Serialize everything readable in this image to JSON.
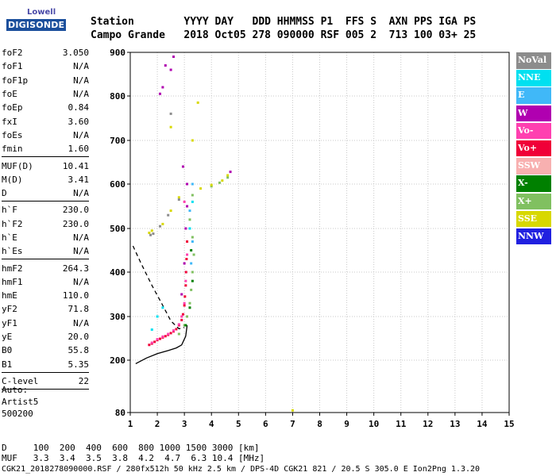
{
  "logo": {
    "brand": "Lowell",
    "product": "DIGISONDE"
  },
  "header": {
    "labels": "Station        YYYY DAY   DDD HHMMSS P1  FFS S  AXN PPS IGA PS",
    "values": "Campo Grande   2018 Oct05 278 090000 RSF 005 2  713 100 03+ 25"
  },
  "params": {
    "group1": [
      {
        "name": "foF2",
        "value": "3.050"
      },
      {
        "name": "foF1",
        "value": "N/A"
      },
      {
        "name": "foF1p",
        "value": "N/A"
      },
      {
        "name": "foE",
        "value": "N/A"
      },
      {
        "name": "foEp",
        "value": "0.84"
      },
      {
        "name": "fxI",
        "value": "3.60"
      },
      {
        "name": "foEs",
        "value": "N/A"
      },
      {
        "name": "fmin",
        "value": "1.60"
      }
    ],
    "group2": [
      {
        "name": "MUF(D)",
        "value": "10.41"
      },
      {
        "name": "M(D)",
        "value": "3.41"
      },
      {
        "name": "D",
        "value": "N/A"
      }
    ],
    "group3": [
      {
        "name": "h`F",
        "value": "230.0"
      },
      {
        "name": "h`F2",
        "value": "230.0"
      },
      {
        "name": "h`E",
        "value": "N/A"
      },
      {
        "name": "h`Es",
        "value": "N/A"
      }
    ],
    "group4": [
      {
        "name": "hmF2",
        "value": "264.3"
      },
      {
        "name": "hmF1",
        "value": "N/A"
      },
      {
        "name": "hmE",
        "value": "110.0"
      },
      {
        "name": "yF2",
        "value": "71.8"
      },
      {
        "name": "yF1",
        "value": "N/A"
      },
      {
        "name": "yE",
        "value": "20.0"
      },
      {
        "name": "B0",
        "value": "55.8"
      },
      {
        "name": "B1",
        "value": "5.35"
      }
    ],
    "group5": [
      {
        "name": "C-level",
        "value": "22"
      }
    ]
  },
  "auto": {
    "line1": "Auto:",
    "line2": "Artist5",
    "line3": "500200"
  },
  "bottom": {
    "d_row": "D     100  200  400  600  800 1000 1500 3000 [km]",
    "muf_row": "MUF   3.3  3.4  3.5  3.8  4.2  4.7  6.3 10.4 [MHz]",
    "footer": "CGK21_2018278090000.RSF / 280fx512h 50 kHz 2.5 km / DPS-4D CGK21 821 / 20.5 S 305.0 E Ion2Png 1.3.20"
  },
  "legend": [
    {
      "label": "NoVal",
      "color": "#8c8c8c"
    },
    {
      "label": "NNE",
      "color": "#00e0f0"
    },
    {
      "label": "E",
      "color": "#40b8f8"
    },
    {
      "label": "W",
      "color": "#b000b0"
    },
    {
      "label": "Vo-",
      "color": "#ff40b0"
    },
    {
      "label": "Vo+",
      "color": "#f00038"
    },
    {
      "label": "SSW",
      "color": "#f8b0b0"
    },
    {
      "label": "X-",
      "color": "#008000"
    },
    {
      "label": "X+",
      "color": "#80c060"
    },
    {
      "label": "SSE",
      "color": "#d8d800"
    },
    {
      "label": "NNW",
      "color": "#2020e0"
    }
  ],
  "chart_data": {
    "type": "scatter",
    "xlim": [
      1,
      15
    ],
    "ylim": [
      80,
      900
    ],
    "x_ticks": [
      1,
      2,
      3,
      4,
      5,
      6,
      7,
      8,
      9,
      10,
      11,
      12,
      13,
      14,
      15
    ],
    "y_ticks": [
      80,
      200,
      300,
      400,
      500,
      600,
      700,
      800,
      900
    ],
    "grid": true,
    "legend_position": "right",
    "series": [
      {
        "name": "Vo+",
        "color": "#f00038",
        "points": [
          [
            1.7,
            235
          ],
          [
            1.8,
            238
          ],
          [
            1.9,
            242
          ],
          [
            2.0,
            246
          ],
          [
            2.1,
            249
          ],
          [
            2.2,
            252
          ],
          [
            2.3,
            255
          ],
          [
            2.4,
            258
          ],
          [
            2.5,
            262
          ],
          [
            2.6,
            266
          ],
          [
            2.7,
            271
          ],
          [
            2.8,
            280
          ],
          [
            2.9,
            292
          ],
          [
            2.95,
            305
          ],
          [
            3.0,
            325
          ],
          [
            3.02,
            345
          ],
          [
            3.05,
            370
          ],
          [
            3.06,
            400
          ],
          [
            3.08,
            430
          ],
          [
            3.1,
            470
          ]
        ]
      },
      {
        "name": "Vo-",
        "color": "#ff40b0",
        "points": [
          [
            1.8,
            240
          ],
          [
            2.0,
            248
          ],
          [
            2.2,
            254
          ],
          [
            2.4,
            260
          ],
          [
            2.6,
            268
          ],
          [
            2.8,
            282
          ],
          [
            2.9,
            300
          ],
          [
            3.0,
            330
          ],
          [
            3.05,
            380
          ],
          [
            3.1,
            440
          ],
          [
            3.0,
            560
          ]
        ]
      },
      {
        "name": "W",
        "color": "#b000b0",
        "points": [
          [
            2.9,
            350
          ],
          [
            3.0,
            420
          ],
          [
            3.05,
            500
          ],
          [
            3.1,
            550
          ],
          [
            2.95,
            640
          ],
          [
            3.1,
            600
          ],
          [
            4.7,
            628
          ],
          [
            2.2,
            820
          ],
          [
            2.3,
            870
          ],
          [
            2.6,
            890
          ],
          [
            2.5,
            860
          ],
          [
            2.1,
            805
          ]
        ]
      },
      {
        "name": "X+",
        "color": "#80c060",
        "points": [
          [
            2.8,
            260
          ],
          [
            3.0,
            280
          ],
          [
            3.1,
            300
          ],
          [
            3.2,
            330
          ],
          [
            3.25,
            360
          ],
          [
            3.3,
            400
          ],
          [
            3.35,
            440
          ],
          [
            3.3,
            480
          ],
          [
            3.2,
            520
          ],
          [
            3.3,
            575
          ],
          [
            4.0,
            595
          ],
          [
            4.3,
            603
          ],
          [
            4.6,
            615
          ]
        ]
      },
      {
        "name": "X-",
        "color": "#008000",
        "points": [
          [
            3.05,
            280
          ],
          [
            3.2,
            320
          ],
          [
            3.3,
            380
          ],
          [
            3.25,
            450
          ]
        ]
      },
      {
        "name": "NNE",
        "color": "#00e0f0",
        "points": [
          [
            1.8,
            270
          ],
          [
            2.0,
            300
          ],
          [
            2.2,
            320
          ],
          [
            3.2,
            500
          ],
          [
            3.3,
            560
          ]
        ]
      },
      {
        "name": "E",
        "color": "#40b8f8",
        "points": [
          [
            3.25,
            420
          ],
          [
            3.3,
            470
          ],
          [
            3.2,
            540
          ],
          [
            3.3,
            600
          ]
        ]
      },
      {
        "name": "SSE",
        "color": "#d8d800",
        "points": [
          [
            1.7,
            490
          ],
          [
            1.8,
            495
          ],
          [
            2.2,
            510
          ],
          [
            2.5,
            540
          ],
          [
            2.8,
            570
          ],
          [
            3.6,
            590
          ],
          [
            4.0,
            598
          ],
          [
            4.4,
            608
          ],
          [
            4.6,
            620
          ],
          [
            3.3,
            700
          ],
          [
            2.5,
            730
          ],
          [
            3.5,
            785
          ],
          [
            7.0,
            85
          ]
        ]
      },
      {
        "name": "NoVal",
        "color": "#8c8c8c",
        "points": [
          [
            1.75,
            485
          ],
          [
            1.85,
            488
          ],
          [
            2.1,
            505
          ],
          [
            2.4,
            530
          ],
          [
            2.8,
            565
          ],
          [
            2.5,
            760
          ]
        ]
      }
    ],
    "curves": [
      {
        "name": "true height profile",
        "style": "solid",
        "points": [
          [
            1.2,
            192
          ],
          [
            1.6,
            205
          ],
          [
            2.0,
            215
          ],
          [
            2.4,
            222
          ],
          [
            2.7,
            228
          ],
          [
            2.9,
            235
          ],
          [
            3.05,
            255
          ],
          [
            3.1,
            280
          ]
        ]
      },
      {
        "name": "trace",
        "style": "dashed",
        "points": [
          [
            1.1,
            460
          ],
          [
            1.4,
            420
          ],
          [
            1.8,
            370
          ],
          [
            2.2,
            325
          ],
          [
            2.5,
            290
          ],
          [
            2.8,
            272
          ],
          [
            3.0,
            275
          ]
        ]
      }
    ]
  }
}
